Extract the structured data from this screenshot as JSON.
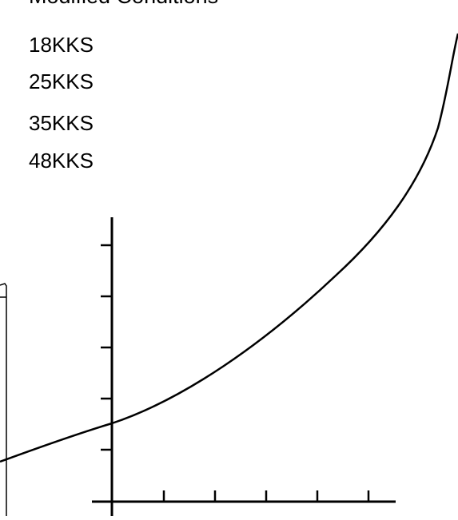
{
  "title": "Modified Conditions",
  "labels": [
    "18KKS",
    "25KKS",
    "35KKS",
    "48KKS"
  ]
}
